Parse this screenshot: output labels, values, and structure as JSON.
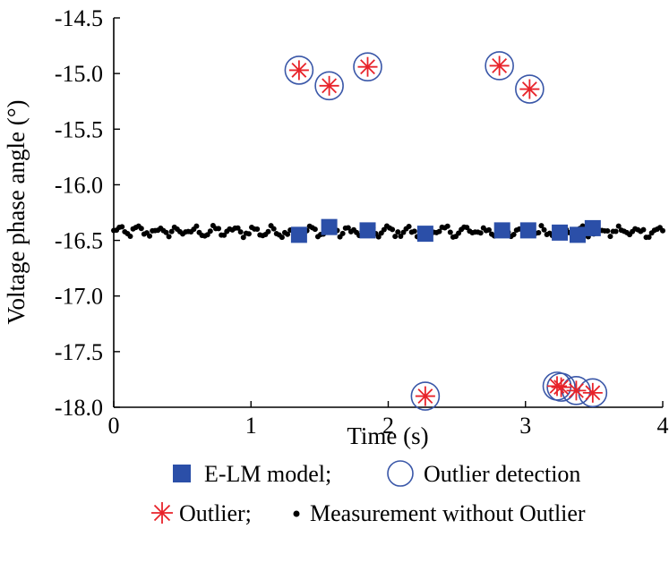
{
  "chart_data": {
    "type": "scatter",
    "xlabel": "Time (s)",
    "ylabel": "Voltage phase angle (°)",
    "xlim": [
      0,
      4
    ],
    "ylim": [
      -18.0,
      -14.5
    ],
    "x_ticks": [
      "0",
      "1",
      "2",
      "3",
      "4"
    ],
    "y_ticks": [
      "-14.5",
      "-15.0",
      "-15.5",
      "-16.0",
      "-16.5",
      "-17.0",
      "-17.5",
      "-18.0"
    ],
    "grid": false,
    "colors": {
      "model": "#2b4fa8",
      "outlier": "#e8232a",
      "detection": "#3a57a8",
      "measurement": "#000000"
    },
    "series": [
      {
        "name": "E-LM model",
        "marker": "square",
        "points": [
          [
            1.35,
            -16.45
          ],
          [
            1.57,
            -16.38
          ],
          [
            1.85,
            -16.41
          ],
          [
            2.27,
            -16.44
          ],
          [
            2.83,
            -16.41
          ],
          [
            3.02,
            -16.41
          ],
          [
            3.25,
            -16.43
          ],
          [
            3.38,
            -16.45
          ],
          [
            3.49,
            -16.39
          ]
        ]
      },
      {
        "name": "Outlier detection",
        "marker": "circle",
        "points": [
          [
            1.35,
            -14.97
          ],
          [
            1.57,
            -15.11
          ],
          [
            1.85,
            -14.94
          ],
          [
            2.81,
            -14.93
          ],
          [
            3.03,
            -15.14
          ],
          [
            2.27,
            -17.9
          ],
          [
            3.23,
            -17.81
          ],
          [
            3.26,
            -17.82
          ],
          [
            3.37,
            -17.85
          ],
          [
            3.49,
            -17.87
          ]
        ]
      },
      {
        "name": "Outlier",
        "marker": "asterisk",
        "points": [
          [
            1.35,
            -14.97
          ],
          [
            1.57,
            -15.11
          ],
          [
            1.85,
            -14.94
          ],
          [
            2.81,
            -14.93
          ],
          [
            3.03,
            -15.14
          ],
          [
            2.27,
            -17.9
          ],
          [
            3.23,
            -17.81
          ],
          [
            3.26,
            -17.82
          ],
          [
            3.37,
            -17.85
          ],
          [
            3.49,
            -17.87
          ]
        ]
      },
      {
        "name": "Measurement without Outlier",
        "marker": "dot",
        "x_start": 0,
        "x_end": 4,
        "count": 200,
        "y_mean": -16.42,
        "y_spread": 0.05
      }
    ],
    "legend": {
      "placement": "bottom",
      "row1": [
        "E-LM model;",
        "Outlier detection"
      ],
      "row2": [
        "Outlier;",
        "Measurement without Outlier"
      ]
    }
  }
}
